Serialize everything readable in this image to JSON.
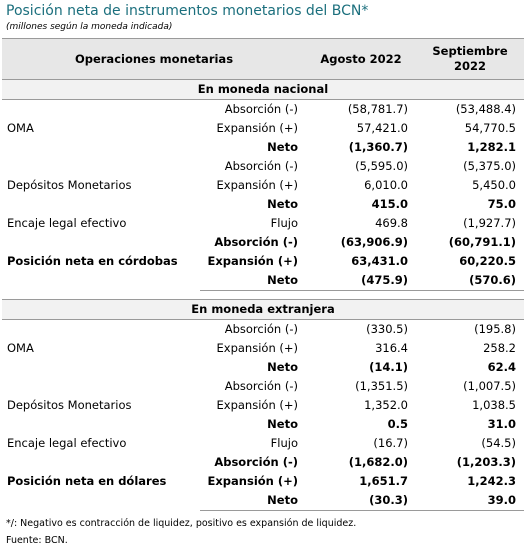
{
  "title": "Posición neta de instrumentos monetarios del BCN*",
  "subtitle": "(millones según la moneda indicada)",
  "table": {
    "headers": [
      "Operaciones monetarias",
      "Agosto 2022",
      "Septiembre 2022"
    ],
    "sections": [
      {
        "title": "En moneda nacional",
        "groups": [
          {
            "label": "OMA",
            "rows": [
              [
                "Absorción (-)",
                "(58,781.7)",
                "(53,488.4)"
              ],
              [
                "Expansión (+)",
                "57,421.0",
                "54,770.5"
              ],
              [
                "Neto",
                "(1,360.7)",
                "1,282.1"
              ]
            ]
          },
          {
            "label": "Depósitos Monetarios",
            "rows": [
              [
                "Absorción (-)",
                "(5,595.0)",
                "(5,375.0)"
              ],
              [
                "Expansión (+)",
                "6,010.0",
                "5,450.0"
              ],
              [
                "Neto",
                "415.0",
                "75.0"
              ]
            ]
          },
          {
            "label": "Encaje legal efectivo",
            "rows": [
              [
                "Flujo",
                "469.8",
                "(1,927.7)"
              ]
            ]
          },
          {
            "label": "Posición neta en córdobas",
            "rows": [
              [
                "Absorción (-)",
                "(63,906.9)",
                "(60,791.1)"
              ],
              [
                "Expansión (+)",
                "63,431.0",
                "60,220.5"
              ],
              [
                "Neto",
                "(475.9)",
                "(570.6)"
              ]
            ]
          }
        ]
      },
      {
        "title": "En moneda extranjera",
        "groups": [
          {
            "label": "OMA",
            "rows": [
              [
                "Absorción (-)",
                "(330.5)",
                "(195.8)"
              ],
              [
                "Expansión (+)",
                "316.4",
                "258.2"
              ],
              [
                "Neto",
                "(14.1)",
                "62.4"
              ]
            ]
          },
          {
            "label": "Depósitos Monetarios",
            "rows": [
              [
                "Absorción (-)",
                "(1,351.5)",
                "(1,007.5)"
              ],
              [
                "Expansión (+)",
                "1,352.0",
                "1,038.5"
              ],
              [
                "Neto",
                "0.5",
                "31.0"
              ]
            ]
          },
          {
            "label": "Encaje legal efectivo",
            "rows": [
              [
                "Flujo",
                "(16.7)",
                "(54.5)"
              ]
            ]
          },
          {
            "label": "Posición neta en dólares",
            "rows": [
              [
                "Absorción (-)",
                "(1,682.0)",
                "(1,203.3)"
              ],
              [
                "Expansión (+)",
                "1,651.7",
                "1,242.3"
              ],
              [
                "Neto",
                "(30.3)",
                "39.0"
              ]
            ]
          }
        ]
      }
    ]
  },
  "notes": [
    "*/: Negativo es contracción de liquidez, positivo es expansión de liquidez.",
    "Fuente: BCN."
  ]
}
